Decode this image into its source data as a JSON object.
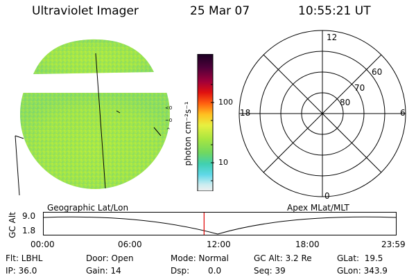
{
  "header": {
    "instrument": "Ultraviolet Imager",
    "date": "25 Mar 07",
    "time": "10:55:21 UT"
  },
  "colorbar": {
    "unit_label": "photon cm⁻²s⁻¹",
    "ticks": [
      {
        "value": "100"
      },
      {
        "value": "10"
      }
    ]
  },
  "polar_plot": {
    "mlt_labels": {
      "top": "12",
      "bottom": "0",
      "left": "18",
      "right": "6"
    },
    "lat_labels": [
      "60",
      "70",
      "80"
    ]
  },
  "timeline": {
    "left_title": "Geographic Lat/Lon",
    "right_title": "Apex MLat/MLT",
    "y_axis_label": "GC Alt",
    "y_ticks": [
      "9.0",
      "1.8"
    ],
    "x_ticks": [
      "00:00",
      "06:00",
      "12:00",
      "18:00",
      "23:59"
    ],
    "current_time_fraction": 0.4554
  },
  "status": {
    "row1": {
      "flt": "Flt: LBHL",
      "door": "Door: Open",
      "mode": "Mode: Normal",
      "gc_alt": "GC Alt: 3.2 Re",
      "glat": "GLat:  19.5"
    },
    "row2": {
      "ip": "IP: 36.0",
      "gain": "Gain: 14",
      "dsp_label": "Dsp:",
      "dsp_value": "0.0",
      "seq": "Seq: 39",
      "glon": "GLon: 343.9"
    }
  },
  "colors": {
    "disk_base": "#a6e640",
    "timeline_marker": "#e00000"
  }
}
